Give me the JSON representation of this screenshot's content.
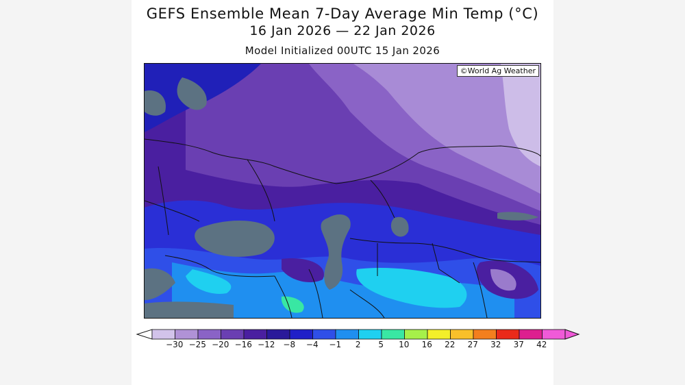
{
  "title": {
    "line1": "GEFS Ensemble Mean 7-Day Average Min Temp (°C)",
    "line2": "16 Jan 2026 — 22 Jan 2026",
    "line3": "Model Initialized 00UTC 15 Jan 2026"
  },
  "credit": "©World Ag Weather",
  "legend": {
    "ticks": [
      "−30",
      "−25",
      "−20",
      "−16",
      "−12",
      "−8",
      "−4",
      "−1",
      "2",
      "5",
      "10",
      "16",
      "22",
      "27",
      "32",
      "37",
      "42"
    ],
    "colors": [
      "#d2c3ea",
      "#b092d6",
      "#8a63c6",
      "#6a3fb2",
      "#4a1fa0",
      "#2a1a9a",
      "#2020c8",
      "#2f4fe8",
      "#1f8ff0",
      "#1fd0f0",
      "#39e7a3",
      "#a6f04a",
      "#f3ef2a",
      "#f8c02a",
      "#f37f1e",
      "#ea2a1a",
      "#dd1f8f",
      "#f05ad8"
    ]
  },
  "colors": {
    "water": "#5c7282",
    "deep_violet": "#4a1fa0",
    "violet": "#6a3fb2",
    "light_violet": "#9a7bcc",
    "lavender": "#c9b8e6",
    "blue": "#2a2fd6",
    "bright_blue": "#1f5ff0",
    "cyan": "#1fd0f0"
  }
}
